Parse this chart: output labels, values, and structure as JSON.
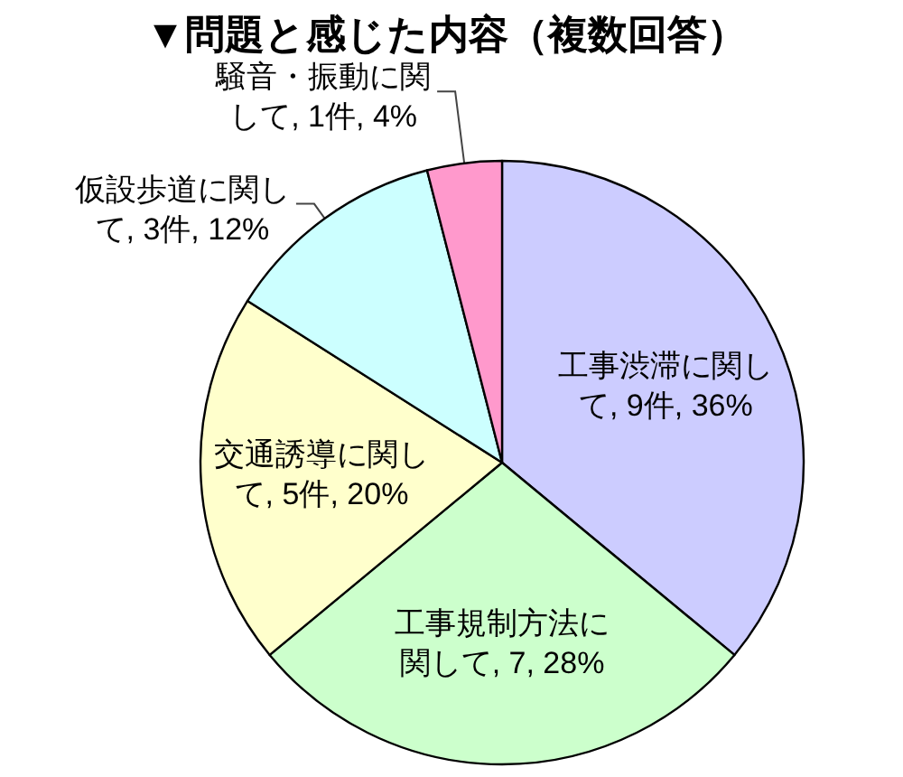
{
  "chart_data": {
    "type": "pie",
    "title": "▼問題と感じた内容（複数回答）",
    "categories": [
      "工事渋滞に関して",
      "工事規制方法に関して",
      "交通誘導に関して",
      "仮設歩道に関して",
      "騒音・振動に関して"
    ],
    "values": [
      9,
      7,
      5,
      3,
      1
    ],
    "value_labels": [
      "9件, 36%",
      "7, 28%",
      "5件, 20%",
      "3件, 12%",
      "1件, 4%"
    ],
    "colors": [
      "#ccccff",
      "#ccffcc",
      "#ffffcc",
      "#ccffff",
      "#ff99cc"
    ]
  }
}
